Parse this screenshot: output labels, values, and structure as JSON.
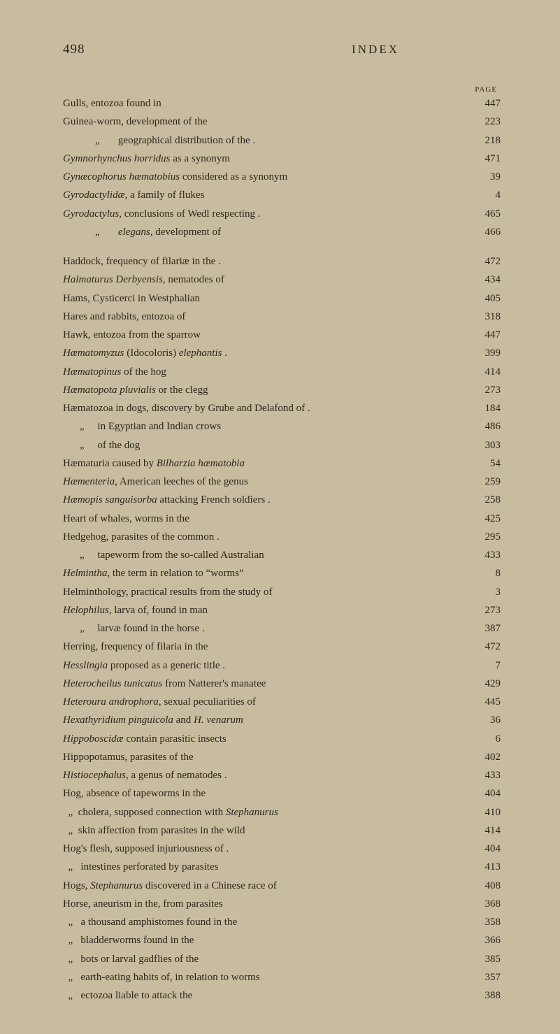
{
  "page_number": "498",
  "section_title": "INDEX",
  "column_header": "PAGE",
  "background_color": "#c8bca0",
  "text_color": "#2a2618",
  "entries_block1": [
    {
      "html": "Gulls, entozoa found in",
      "page": "447"
    },
    {
      "html": "Guinea-worm, development of the",
      "page": "223"
    },
    {
      "html": "<span class='indent1'></span>„&nbsp;&nbsp;&nbsp;&nbsp;&nbsp;&nbsp;&nbsp;geographical distribution of the .",
      "page": "218"
    },
    {
      "html": "<span class='italic'>Gymnorhynchus horridus</span> as a synonym",
      "page": "471"
    },
    {
      "html": "<span class='italic'>Gynæcophorus hæmatobius</span> considered as a synonym",
      "page": "39"
    },
    {
      "html": "<span class='italic'>Gyrodactylidæ</span>, a family of flukes",
      "page": "4"
    },
    {
      "html": "<span class='italic'>Gyrodactylus</span>, conclusions of Wedl respecting   .",
      "page": "465"
    },
    {
      "html": "<span class='indent1'></span>„&nbsp;&nbsp;&nbsp;&nbsp;&nbsp;&nbsp;&nbsp;<span class='italic'>elegans</span>, development of",
      "page": "466"
    }
  ],
  "entries_block2": [
    {
      "html": "Haddock, frequency of filariæ in the  .",
      "page": "472"
    },
    {
      "html": "<span class='italic'>Halmaturus Derbyensis</span>, nematodes of",
      "page": "434"
    },
    {
      "html": "Hams, Cysticerci in Westphalian",
      "page": "405"
    },
    {
      "html": "Hares and rabbits, entozoa of",
      "page": "318"
    },
    {
      "html": "Hawk, entozoa from the sparrow",
      "page": "447"
    },
    {
      "html": "<span class='italic'>Hæmatomyzus</span> (Idocoloris) <span class='italic'>elephantis</span>  .",
      "page": "399"
    },
    {
      "html": "<span class='italic'>Hæmatopinus</span> of the hog",
      "page": "414"
    },
    {
      "html": "<span class='italic'>Hæmatopota pluvialis</span> or the clegg",
      "page": "273"
    },
    {
      "html": "Hæmatozoa in dogs, discovery by Grube and Delafond of  .",
      "page": "184"
    },
    {
      "html": "<span class='indent-ditto1'></span>„&nbsp;&nbsp;&nbsp;&nbsp;&nbsp;in Egyptian and Indian crows",
      "page": "486"
    },
    {
      "html": "<span class='indent-ditto1'></span>„&nbsp;&nbsp;&nbsp;&nbsp;&nbsp;of the dog",
      "page": "303"
    },
    {
      "html": "Hæmaturia caused by <span class='italic'>Bilharzia hæmatobia</span>",
      "page": "54"
    },
    {
      "html": "<span class='italic'>Hæmenteria</span>, American leeches of the genus",
      "page": "259"
    },
    {
      "html": "<span class='italic'>Hæmopis sanguisorba</span> attacking French soldiers .",
      "page": "258"
    },
    {
      "html": "Heart of whales, worms in the",
      "page": "425"
    },
    {
      "html": "Hedgehog, parasites of the common   .",
      "page": "295"
    },
    {
      "html": "<span class='indent-ditto1'></span>„&nbsp;&nbsp;&nbsp;&nbsp;&nbsp;tapeworm from the so-called Australian",
      "page": "433"
    },
    {
      "html": "<span class='italic'>Helmintha</span>, the term in relation to “worms”",
      "page": "8"
    },
    {
      "html": "Helminthology, practical results from the study of",
      "page": "3"
    },
    {
      "html": "<span class='italic'>Helophilus</span>, larva of, found in man",
      "page": "273"
    },
    {
      "html": "<span class='indent-ditto1'></span>„&nbsp;&nbsp;&nbsp;&nbsp;&nbsp;larvæ found in the horse  .",
      "page": "387"
    },
    {
      "html": "Herring, frequency of filaria in the",
      "page": "472"
    },
    {
      "html": "<span class='italic'>Hesslingia</span> proposed as a generic title  .",
      "page": "7"
    },
    {
      "html": "<span class='italic'>Heterocheilus tunicatus</span> from Natterer's manatee",
      "page": "429"
    },
    {
      "html": "<span class='italic'>Heteroura androphora</span>, sexual peculiarities of",
      "page": "445"
    },
    {
      "html": "<span class='italic'>Hexathyridium pinguicola</span> and <span class='italic'>H. venarum</span>",
      "page": "36"
    },
    {
      "html": "<span class='italic'>Hippoboscidæ</span> contain parasitic insects",
      "page": "6"
    },
    {
      "html": "Hippopotamus, parasites of the",
      "page": "402"
    },
    {
      "html": "<span class='italic'>Histiocephalus</span>, a genus of nematodes  .",
      "page": "433"
    },
    {
      "html": "Hog, absence of tapeworms in the",
      "page": "404"
    },
    {
      "html": "&nbsp;&nbsp;„&nbsp;&nbsp;cholera, supposed connection with <span class='italic'>Stephanurus</span>",
      "page": "410"
    },
    {
      "html": "&nbsp;&nbsp;„&nbsp;&nbsp;skin affection from parasites in the wild",
      "page": "414"
    },
    {
      "html": "Hog's flesh, supposed injuriousness of .",
      "page": "404"
    },
    {
      "html": "&nbsp;&nbsp;„&nbsp;&nbsp;&nbsp;intestines perforated by parasites",
      "page": "413"
    },
    {
      "html": "Hogs, <span class='italic'>Stephanurus</span> discovered in a Chinese race of",
      "page": "408"
    },
    {
      "html": "Horse, aneurism in the, from parasites",
      "page": "368"
    },
    {
      "html": "&nbsp;&nbsp;„&nbsp;&nbsp;&nbsp;a thousand amphistomes found in the",
      "page": "358"
    },
    {
      "html": "&nbsp;&nbsp;„&nbsp;&nbsp;&nbsp;bladderworms found in the",
      "page": "366"
    },
    {
      "html": "&nbsp;&nbsp;„&nbsp;&nbsp;&nbsp;bots or larval gadflies of the",
      "page": "385"
    },
    {
      "html": "&nbsp;&nbsp;„&nbsp;&nbsp;&nbsp;earth-eating habits of, in relation to worms",
      "page": "357"
    },
    {
      "html": "&nbsp;&nbsp;„&nbsp;&nbsp;&nbsp;ectozoa liable to attack the",
      "page": "388"
    }
  ]
}
